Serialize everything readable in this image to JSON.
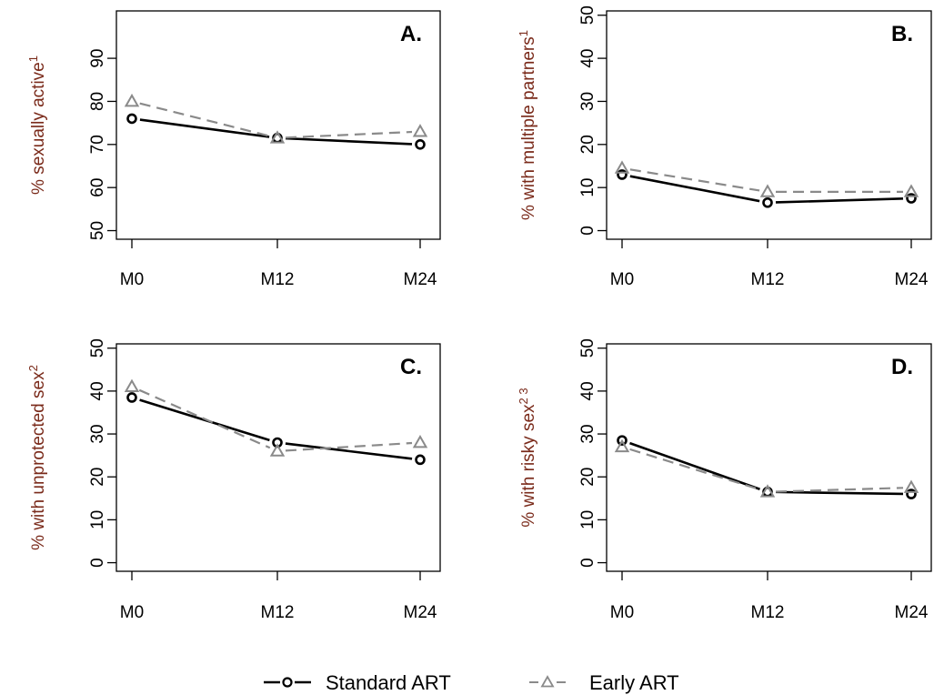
{
  "chart_data": [
    {
      "panel": "A.",
      "type": "line",
      "ylabel": "% sexually active",
      "ylabel_sup": "1",
      "categories": [
        "M0",
        "M12",
        "M24"
      ],
      "ylim": [
        48,
        101
      ],
      "yticks": [
        50,
        60,
        70,
        80,
        90
      ],
      "series": [
        {
          "name": "Standard ART",
          "values": [
            76,
            71.5,
            70
          ]
        },
        {
          "name": "Early ART",
          "values": [
            80,
            71.5,
            73
          ]
        }
      ]
    },
    {
      "panel": "B.",
      "type": "line",
      "ylabel": "% with multiple partners",
      "ylabel_sup": "1",
      "categories": [
        "M0",
        "M12",
        "M24"
      ],
      "ylim": [
        -2,
        51
      ],
      "yticks": [
        0,
        10,
        20,
        30,
        40,
        50
      ],
      "series": [
        {
          "name": "Standard ART",
          "values": [
            13,
            6.5,
            7.5
          ]
        },
        {
          "name": "Early ART",
          "values": [
            14.5,
            9,
            9
          ]
        }
      ]
    },
    {
      "panel": "C.",
      "type": "line",
      "ylabel": "% with unprotected sex",
      "ylabel_sup": "2",
      "categories": [
        "M0",
        "M12",
        "M24"
      ],
      "ylim": [
        -2,
        51
      ],
      "yticks": [
        0,
        10,
        20,
        30,
        40,
        50
      ],
      "series": [
        {
          "name": "Standard ART",
          "values": [
            38.5,
            28,
            24
          ]
        },
        {
          "name": "Early ART",
          "values": [
            41,
            26,
            28
          ]
        }
      ]
    },
    {
      "panel": "D.",
      "type": "line",
      "ylabel": "% with risky sex",
      "ylabel_sup": "2 3",
      "categories": [
        "M0",
        "M12",
        "M24"
      ],
      "ylim": [
        -2,
        51
      ],
      "yticks": [
        0,
        10,
        20,
        30,
        40,
        50
      ],
      "series": [
        {
          "name": "Standard ART",
          "values": [
            28.5,
            16.5,
            16
          ]
        },
        {
          "name": "Early ART",
          "values": [
            27,
            16.5,
            17.5
          ]
        }
      ]
    }
  ],
  "legend": {
    "entries": [
      {
        "label": "Standard ART",
        "style": "solid-circle",
        "color": "#000000"
      },
      {
        "label": "Early ART",
        "style": "dashed-triangle",
        "color": "#8a8a8a"
      }
    ]
  },
  "colors": {
    "standard": "#000000",
    "early": "#8a8a8a",
    "axis_label": "#7a2a1a"
  }
}
